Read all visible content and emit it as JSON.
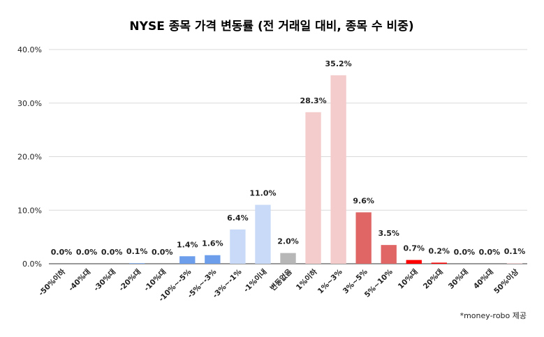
{
  "chart_data": {
    "type": "bar",
    "title": "NYSE 종목 가격 변동률 (전 거래일 대비, 종목 수 비중)",
    "xlabel": "",
    "ylabel": "",
    "ylim": [
      0,
      40
    ],
    "yticks": [
      "0.0%",
      "10.0%",
      "20.0%",
      "30.0%",
      "40.0%"
    ],
    "grid": true,
    "categories": [
      "-50%이하",
      "-40%대",
      "-30%대",
      "-20%대",
      "-10%대",
      "-10%~-5%",
      "-5%~-3%",
      "-3%~-1%",
      "-1%이내",
      "변동없음",
      "1%이하",
      "1%~3%",
      "3%~5%",
      "5%~10%",
      "10%대",
      "20%대",
      "30%대",
      "40%대",
      "50%이상"
    ],
    "values": [
      0.0,
      0.0,
      0.0,
      0.1,
      0.0,
      1.4,
      1.6,
      6.4,
      11.0,
      2.0,
      28.3,
      35.2,
      9.6,
      3.5,
      0.7,
      0.2,
      0.0,
      0.0,
      0.1
    ],
    "value_labels": [
      "0.0%",
      "0.0%",
      "0.0%",
      "0.1%",
      "0.0%",
      "1.4%",
      "1.6%",
      "6.4%",
      "11.0%",
      "2.0%",
      "28.3%",
      "35.2%",
      "9.6%",
      "3.5%",
      "0.7%",
      "0.2%",
      "0.0%",
      "0.0%",
      "0.1%"
    ],
    "colors": [
      "#6d9eeb",
      "#6d9eeb",
      "#6d9eeb",
      "#6d9eeb",
      "#6d9eeb",
      "#6d9eeb",
      "#6d9eeb",
      "#c9daf8",
      "#c9daf8",
      "#b7b7b7",
      "#f4cccc",
      "#f4cccc",
      "#e06666",
      "#e06666",
      "#ff0000",
      "#ff0000",
      "#e06666",
      "#e06666",
      "#f4cccc"
    ]
  },
  "footer": {
    "note": "*money-robo 제공"
  }
}
